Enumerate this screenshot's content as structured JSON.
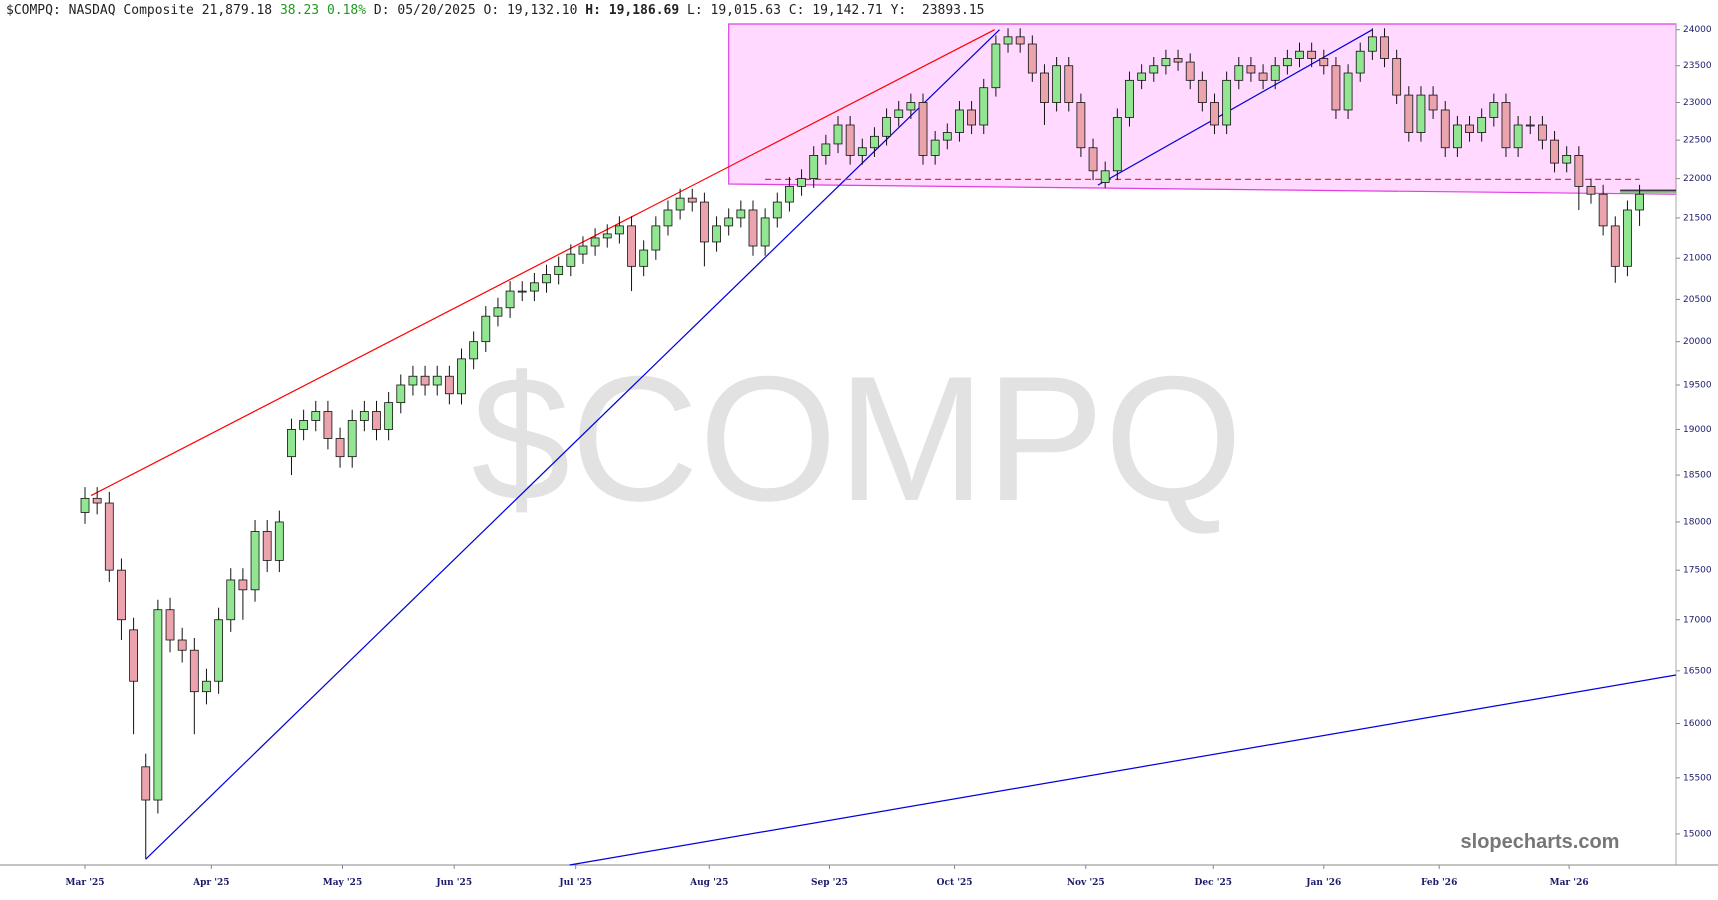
{
  "header": {
    "symbol": "$COMPQ:",
    "name": "NASDAQ Composite",
    "last": "21,879.18",
    "change": "38.23",
    "change_pct": "0.18%",
    "d_label": "D:",
    "d_value": "05/20/2025",
    "o_label": "O:",
    "o_value": "19,132.10",
    "h_label": "H:",
    "h_value": "19,186.69",
    "l_label": "L:",
    "l_value": "19,015.63",
    "c_label": "C:",
    "c_value": "19,142.71",
    "y_label": "Y:",
    "y_value": "23893.15"
  },
  "chart_data": {
    "type": "candlestick",
    "watermark": "$COMPQ",
    "brand": "slopecharts.com",
    "up_color": "#92e692",
    "down_color": "#eba3ad",
    "open": [
      18100,
      18250,
      18200,
      17500,
      16900,
      15600,
      15300,
      17100,
      16800,
      16700,
      16300,
      16400,
      17000,
      17400,
      17300,
      17900,
      17600,
      18700,
      19000,
      19100,
      19200,
      18900,
      18700,
      19100,
      19200,
      19000,
      19300,
      19500,
      19600,
      19500,
      19600,
      19400,
      19800,
      20000,
      20300,
      20400,
      20600,
      20600,
      20700,
      20800,
      20900,
      21050,
      21150,
      21250,
      21300,
      21400,
      20900,
      21100,
      21400,
      21600,
      21750,
      21700,
      21200,
      21400,
      21500,
      21600,
      21150,
      21500,
      21700,
      21900,
      22000,
      22300,
      22450,
      22700,
      22300,
      22400,
      22550,
      22800,
      22900,
      23000,
      22300,
      22500,
      22600,
      22900,
      22700,
      23200,
      23800,
      23900,
      23800,
      23400,
      23000,
      23500,
      23000,
      22400,
      21950,
      22100,
      22800,
      23300,
      23400,
      23500,
      23600,
      23550,
      23300,
      23000,
      22700,
      23300,
      23500,
      23400,
      23300,
      23500,
      23600,
      23700,
      23600,
      23500,
      22900,
      23400,
      23700,
      23900,
      23600,
      23100,
      22600,
      23100,
      22900,
      22400,
      22700,
      22600,
      22800,
      23000,
      22400,
      22700,
      22700,
      22500,
      22200,
      22300,
      21900,
      21800,
      21400,
      20900,
      21600
    ],
    "high": [
      18370,
      18370,
      18320,
      17620,
      17020,
      15720,
      17200,
      17220,
      16920,
      16820,
      16520,
      17120,
      17520,
      17520,
      18020,
      18020,
      18120,
      19120,
      19220,
      19320,
      19320,
      19020,
      19220,
      19320,
      19320,
      19420,
      19620,
      19720,
      19720,
      19720,
      19720,
      19920,
      20120,
      20420,
      20520,
      20720,
      20720,
      20820,
      20920,
      21020,
      21170,
      21270,
      21370,
      21420,
      21520,
      21520,
      21220,
      21520,
      21720,
      21870,
      21870,
      21820,
      21520,
      21620,
      21720,
      21720,
      21620,
      21820,
      22020,
      22120,
      22420,
      22570,
      22820,
      22820,
      22520,
      22670,
      22920,
      23020,
      23120,
      23120,
      22620,
      22720,
      23020,
      23020,
      23320,
      23920,
      24020,
      24020,
      23920,
      23520,
      23620,
      23620,
      23120,
      22520,
      22220,
      22920,
      23420,
      23520,
      23620,
      23720,
      23720,
      23670,
      23420,
      23120,
      23420,
      23620,
      23620,
      23520,
      23620,
      23720,
      23820,
      23820,
      23720,
      23620,
      23520,
      23820,
      24020,
      24020,
      23720,
      23220,
      23220,
      23220,
      23020,
      22820,
      22820,
      22920,
      23120,
      23120,
      22820,
      22820,
      22820,
      22620,
      22420,
      22420,
      22000,
      21920,
      21520,
      21720,
      21920
    ],
    "low": [
      17980,
      18080,
      17380,
      16800,
      15900,
      14780,
      15180,
      16680,
      16580,
      15900,
      16180,
      16280,
      16880,
      17000,
      17180,
      17480,
      17480,
      18500,
      18880,
      18980,
      18780,
      18580,
      18580,
      18980,
      18880,
      18880,
      19180,
      19380,
      19380,
      19380,
      19280,
      19280,
      19680,
      19880,
      20180,
      20280,
      20480,
      20480,
      20580,
      20680,
      20780,
      20930,
      21030,
      21130,
      21180,
      20600,
      20780,
      20980,
      21280,
      21480,
      21580,
      20900,
      21080,
      21280,
      21380,
      21030,
      21030,
      21380,
      21580,
      21780,
      21880,
      22180,
      22330,
      22180,
      22180,
      22280,
      22430,
      22680,
      22780,
      22180,
      22180,
      22380,
      22480,
      22580,
      22580,
      23080,
      23680,
      23680,
      23280,
      22700,
      22880,
      22880,
      22280,
      21980,
      21880,
      21980,
      22680,
      23180,
      23280,
      23380,
      23430,
      23180,
      22880,
      22580,
      22580,
      23180,
      23280,
      23180,
      23180,
      23380,
      23480,
      23480,
      23380,
      22780,
      22780,
      23280,
      23580,
      23480,
      22980,
      22480,
      22480,
      22780,
      22280,
      22280,
      22480,
      22480,
      22680,
      22280,
      22280,
      22580,
      22380,
      22080,
      22080,
      21600,
      21680,
      21280,
      20700,
      20780,
      21400
    ],
    "close": [
      18250,
      18200,
      17500,
      17000,
      16400,
      15300,
      17100,
      16800,
      16700,
      16300,
      16400,
      17000,
      17400,
      17300,
      17900,
      17600,
      18000,
      19000,
      19100,
      19200,
      18900,
      18700,
      19100,
      19200,
      19000,
      19300,
      19500,
      19600,
      19500,
      19600,
      19400,
      19800,
      20000,
      20300,
      20400,
      20600,
      20600,
      20700,
      20800,
      20900,
      21050,
      21150,
      21250,
      21300,
      21400,
      20900,
      21100,
      21400,
      21600,
      21750,
      21700,
      21200,
      21400,
      21500,
      21600,
      21150,
      21500,
      21700,
      21900,
      22000,
      22300,
      22450,
      22700,
      22300,
      22400,
      22550,
      22800,
      22900,
      23000,
      22300,
      22500,
      22600,
      22900,
      22700,
      23200,
      23800,
      23900,
      23800,
      23400,
      23000,
      23500,
      23000,
      22400,
      22100,
      22100,
      22800,
      23300,
      23400,
      23500,
      23600,
      23550,
      23300,
      23000,
      22700,
      23300,
      23500,
      23400,
      23300,
      23500,
      23600,
      23700,
      23600,
      23500,
      22900,
      23400,
      23700,
      23900,
      23600,
      23100,
      22600,
      23100,
      22900,
      22400,
      22700,
      22600,
      22800,
      23000,
      22400,
      22700,
      22700,
      22500,
      22200,
      22300,
      21900,
      21800,
      21400,
      20900,
      21600,
      21800
    ],
    "xlim": [
      -7,
      131
    ],
    "xticks": [
      {
        "value": 0,
        "label": "Mar '25"
      },
      {
        "value": 10.4,
        "label": "Apr '25"
      },
      {
        "value": 21.2,
        "label": "May '25"
      },
      {
        "value": 30.4,
        "label": "Jun '25"
      },
      {
        "value": 40.4,
        "label": "Jul '25"
      },
      {
        "value": 51.4,
        "label": "Aug '25"
      },
      {
        "value": 61.3,
        "label": "Sep '25"
      },
      {
        "value": 71.6,
        "label": "Oct '25"
      },
      {
        "value": 82.4,
        "label": "Nov '25"
      },
      {
        "value": 92.9,
        "label": "Dec '25"
      },
      {
        "value": 102,
        "label": "Jan '26"
      },
      {
        "value": 111.5,
        "label": "Feb '26"
      },
      {
        "value": 122.2,
        "label": "Mar '26"
      }
    ],
    "ylim": [
      14730,
      24080
    ],
    "log_scale": true,
    "grid": false,
    "yticks": [
      15000,
      15500,
      16000,
      16500,
      17000,
      17500,
      18000,
      18500,
      19000,
      19500,
      20000,
      20500,
      21000,
      21500,
      22000,
      22500,
      23000,
      23500,
      24000
    ],
    "zone": {
      "color": "#ffd9ff",
      "edge_color": "#e040e0",
      "x": [
        53,
        131,
        131,
        53
      ],
      "y": [
        24080,
        24080,
        21800,
        21930
      ]
    },
    "lines": [
      {
        "color": "#ff0000",
        "dash": false,
        "x": [
          0.5,
          74.9
        ],
        "y": [
          18280,
          24000
        ]
      },
      {
        "color": "#0000dd",
        "dash": false,
        "x": [
          5,
          75.3
        ],
        "y": [
          14780,
          24000
        ]
      },
      {
        "color": "#0000dd",
        "dash": false,
        "x": [
          39.9,
          131
        ],
        "y": [
          14730,
          16460
        ]
      },
      {
        "color": "#0000dd",
        "dash": false,
        "x": [
          83.4,
          106
        ],
        "y": [
          21916,
          24000
        ]
      },
      {
        "color": "#e03030",
        "dash": true,
        "x": [
          56,
          128
        ],
        "y": [
          21990,
          21990
        ]
      },
      {
        "color": "#222222",
        "dash": false,
        "x": [
          126.4,
          131
        ],
        "y": [
          21850,
          21850
        ]
      },
      {
        "color": "#22aa22",
        "dash": false,
        "x": [
          126.4,
          131
        ],
        "y": [
          21830,
          21830
        ]
      }
    ]
  }
}
